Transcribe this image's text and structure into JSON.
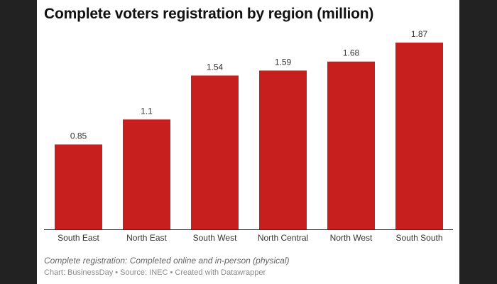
{
  "title": "Complete voters registration by region (million)",
  "notes": "Complete registration: Completed online and in-person (physical)",
  "credits": "Chart: BusinessDay • Source: INEC • Created with Datawrapper",
  "chart_data": {
    "type": "bar",
    "title": "Complete voters registration by region (million)",
    "categories": [
      "South East",
      "North East",
      "South West",
      "North Central",
      "North West",
      "South South"
    ],
    "values": [
      0.85,
      1.1,
      1.54,
      1.59,
      1.68,
      1.87
    ],
    "value_labels": [
      "0.85",
      "1.1",
      "1.54",
      "1.59",
      "1.68",
      "1.87"
    ],
    "xlabel": "",
    "ylabel": "",
    "ylim": [
      0,
      1.87
    ],
    "grid": false,
    "bar_color": "#c71e1e"
  }
}
